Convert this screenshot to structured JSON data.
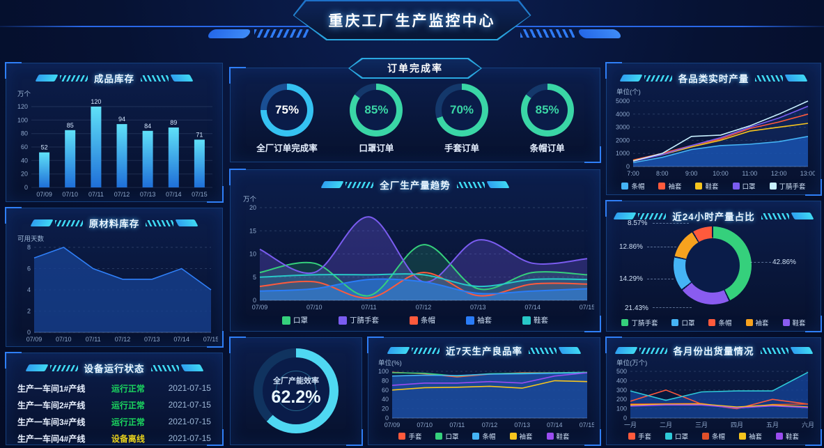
{
  "header": {
    "title": "重庆工厂生产监控中心"
  },
  "panels": {
    "finished_inventory": {
      "title": "成品库存"
    },
    "raw_inventory": {
      "title": "原材料库存"
    },
    "equipment": {
      "title": "设备运行状态",
      "rows": [
        {
          "line": "生产一车间1#产线",
          "status": "运行正常",
          "status_color": "#1bd75f",
          "date": "2021-07-15"
        },
        {
          "line": "生产一车间2#产线",
          "status": "运行正常",
          "status_color": "#1bd75f",
          "date": "2021-07-15"
        },
        {
          "line": "生产一车间3#产线",
          "status": "运行正常",
          "status_color": "#1bd75f",
          "date": "2021-07-15"
        },
        {
          "line": "生产一车间4#产线",
          "status": "设备离线",
          "status_color": "#e8d21c",
          "date": "2021-07-15"
        }
      ]
    },
    "order_rate": {
      "title": "订单完成率",
      "gauges": [
        {
          "value": "75%",
          "pct": 75,
          "label": "全厂订单完成率",
          "color": "#35c2f2",
          "track": "#1a4f93",
          "value_color": "#ffffff"
        },
        {
          "value": "85%",
          "pct": 85,
          "label": "口罩订单",
          "color": "#3ad6a6",
          "track": "#14386b",
          "value_color": "#3ad6a6"
        },
        {
          "value": "70%",
          "pct": 70,
          "label": "手套订单",
          "color": "#3ad6a6",
          "track": "#14386b",
          "value_color": "#3ad6a6"
        },
        {
          "value": "85%",
          "pct": 85,
          "label": "条帽订单",
          "color": "#3ad6a6",
          "track": "#14386b",
          "value_color": "#3ad6a6"
        }
      ]
    },
    "trend": {
      "title": "全厂生产量趋势"
    },
    "capacity": {
      "label": "全厂产能效率",
      "value": "62.2%",
      "pct": 62.2,
      "color": "#4fd8f2",
      "track": "#10335f",
      "value_color": "#eaf8ff"
    },
    "yield": {
      "title": "近7天生产良品率"
    },
    "realtime": {
      "title": "各品类实时产量"
    },
    "share24": {
      "title": "近24小时产量占比"
    },
    "monthly": {
      "title": "各月份出货量情况"
    }
  },
  "chart_data": [
    {
      "id": "finished_inventory",
      "type": "bar",
      "title": "成品库存",
      "ylabel": "万个",
      "categories": [
        "07/09",
        "07/10",
        "07/11",
        "07/12",
        "07/13",
        "07/14",
        "07/15"
      ],
      "values": [
        52,
        85,
        120,
        94,
        84,
        89,
        71
      ],
      "ylim": [
        0,
        120
      ],
      "yticks": [
        0,
        20,
        40,
        60,
        80,
        100,
        120
      ],
      "bar_gradient": [
        "#5fe0f8",
        "#1f6fd8"
      ]
    },
    {
      "id": "raw_inventory",
      "type": "line",
      "title": "原材料库存",
      "ylabel": "可用天数",
      "categories": [
        "07/09",
        "07/10",
        "07/11",
        "07/12",
        "07/13",
        "07/14",
        "07/15"
      ],
      "ylim": [
        0,
        8
      ],
      "yticks": [
        0,
        2,
        4,
        6,
        8
      ],
      "series": [
        {
          "name": "可用天数",
          "color": "#2f7ff7",
          "values": [
            7,
            8,
            6,
            5,
            5,
            6,
            4
          ],
          "area": 0.8,
          "area_color": "#17408f"
        }
      ]
    },
    {
      "id": "trend",
      "type": "line",
      "smooth": true,
      "title": "全厂生产量趋势",
      "ylabel": "万个",
      "categories": [
        "07/09",
        "07/10",
        "07/11",
        "07/12",
        "07/13",
        "07/14",
        "07/15"
      ],
      "ylim": [
        0,
        20
      ],
      "yticks": [
        0,
        5,
        10,
        15,
        20
      ],
      "series": [
        {
          "name": "口罩",
          "color": "#35d07c",
          "values": [
            6,
            8,
            1,
            12,
            2.5,
            6,
            5.5
          ],
          "area": 0.18
        },
        {
          "name": "丁腈手套",
          "color": "#7a5cf0",
          "values": [
            11,
            6,
            18,
            4,
            13,
            8,
            9
          ],
          "area": 0.28
        },
        {
          "name": "条帽",
          "color": "#ff5a3c",
          "values": [
            3,
            4,
            0.5,
            6,
            1,
            3.5,
            3.5
          ],
          "area": 0.12
        },
        {
          "name": "袖套",
          "color": "#2a7cf7",
          "values": [
            2,
            2.5,
            4.5,
            4,
            1.5,
            2,
            2.5
          ],
          "area": 0.55
        },
        {
          "name": "鞋套",
          "color": "#28c8c8",
          "values": [
            5,
            5.5,
            5.5,
            5.5,
            3,
            4.5,
            4.5
          ],
          "area": 0.15
        }
      ]
    },
    {
      "id": "yield",
      "type": "line",
      "title": "近7天生产良品率",
      "ylabel": "单位(%)",
      "pad_l": 30,
      "categories": [
        "07/09",
        "07/10",
        "07/11",
        "07/12",
        "07/13",
        "07/14",
        "07/15"
      ],
      "ylim": [
        0,
        100
      ],
      "yticks": [
        0,
        20,
        40,
        60,
        80,
        100
      ],
      "series": [
        {
          "name": "手套",
          "color": "#ff5a3c",
          "values": [
            98,
            95,
            88,
            94,
            97,
            97,
            97
          ]
        },
        {
          "name": "口罩",
          "color": "#35d07c",
          "values": [
            97,
            96,
            90,
            95,
            96,
            97,
            98
          ]
        },
        {
          "name": "条帽",
          "color": "#45b4f5",
          "values": [
            90,
            92,
            91,
            94,
            95,
            96,
            97
          ],
          "area": 0.85,
          "area_color": "#1c4fa5"
        },
        {
          "name": "袖套",
          "color": "#f7c51e",
          "values": [
            60,
            65,
            66,
            68,
            64,
            80,
            78
          ]
        },
        {
          "name": "鞋套",
          "color": "#9a4df0",
          "values": [
            70,
            75,
            75,
            78,
            75,
            90,
            97
          ]
        }
      ]
    },
    {
      "id": "realtime",
      "type": "line",
      "title": "各品类实时产量",
      "ylabel": "单位(个)",
      "pad_l": 34,
      "categories": [
        "7:00",
        "8:00",
        "9:00",
        "10:00",
        "11:00",
        "12:00",
        "13:00"
      ],
      "ylim": [
        0,
        5000
      ],
      "yticks": [
        0,
        1000,
        2000,
        3000,
        4000,
        5000
      ],
      "series": [
        {
          "name": "条帽",
          "color": "#45b4f5",
          "values": [
            300,
            700,
            1300,
            1600,
            1700,
            1900,
            2300
          ],
          "area": 0.8,
          "area_color": "#1a5fc4"
        },
        {
          "name": "袖套",
          "color": "#ff5a3c",
          "values": [
            500,
            1000,
            1600,
            2100,
            2900,
            3400,
            4000
          ]
        },
        {
          "name": "鞋套",
          "color": "#f7c51e",
          "values": [
            450,
            900,
            1500,
            2000,
            2700,
            3000,
            3300
          ]
        },
        {
          "name": "口罩",
          "color": "#7a5cf0",
          "values": [
            400,
            900,
            1600,
            2200,
            3000,
            3700,
            4600
          ],
          "area": 0.3,
          "area_color": "#1c3f8f"
        },
        {
          "name": "丁腈手套",
          "color": "#c8f0ff",
          "values": [
            420,
            1000,
            2300,
            2400,
            3100,
            4000,
            5000
          ]
        }
      ]
    },
    {
      "id": "share24",
      "type": "pie",
      "title": "近24小时产量占比",
      "slices": [
        {
          "name": "丁腈手套",
          "pct": 42.86,
          "label": "42.86%",
          "color": "#35d07c"
        },
        {
          "name": "鞋套",
          "pct": 21.43,
          "label": "21.43%",
          "color": "#8a5cf0"
        },
        {
          "name": "口罩",
          "pct": 14.29,
          "label": "14.29%",
          "color": "#45b4f5"
        },
        {
          "name": "袖套",
          "pct": 12.86,
          "label": "12.86%",
          "color": "#f7a21e"
        },
        {
          "name": "条帽",
          "pct": 8.57,
          "label": "8.57%",
          "color": "#ff5a3c"
        }
      ],
      "legend_items": [
        {
          "name": "丁腈手套",
          "color": "#35d07c"
        },
        {
          "name": "口罩",
          "color": "#45b4f5"
        },
        {
          "name": "条帽",
          "color": "#ff5a3c"
        },
        {
          "name": "袖套",
          "color": "#f7a21e"
        },
        {
          "name": "鞋套",
          "color": "#8a5cf0"
        }
      ]
    },
    {
      "id": "monthly",
      "type": "line",
      "title": "各月份出货量情况",
      "ylabel": "单位(万个)",
      "pad_l": 30,
      "categories": [
        "一月",
        "二月",
        "三月",
        "四月",
        "五月",
        "六月"
      ],
      "ylim": [
        0,
        500
      ],
      "yticks": [
        0,
        100,
        200,
        300,
        400,
        500
      ],
      "series": [
        {
          "name": "手套",
          "color": "#ff5a3c",
          "values": [
            180,
            300,
            150,
            100,
            200,
            150
          ]
        },
        {
          "name": "口罩",
          "color": "#2ec9d8",
          "values": [
            290,
            190,
            280,
            290,
            290,
            490
          ],
          "area": 0.75,
          "area_color": "#16459c"
        },
        {
          "name": "条帽",
          "color": "#e0502a",
          "values": [
            150,
            152,
            155,
            105,
            145,
            150
          ]
        },
        {
          "name": "袖套",
          "color": "#f7c51e",
          "values": [
            140,
            148,
            150,
            118,
            140,
            118
          ]
        },
        {
          "name": "鞋套",
          "color": "#9a4df0",
          "values": [
            128,
            140,
            140,
            108,
            130,
            112
          ]
        }
      ]
    }
  ]
}
